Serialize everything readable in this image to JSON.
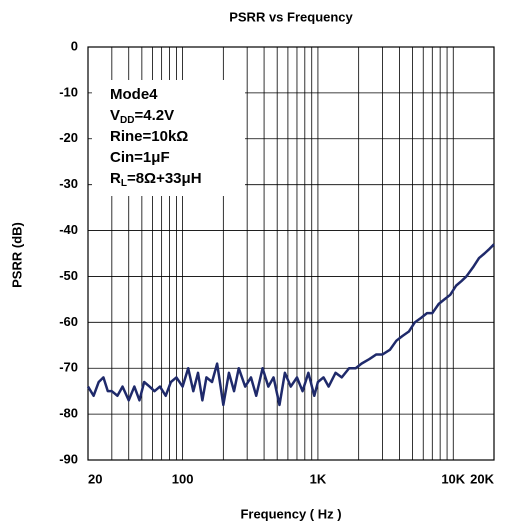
{
  "chart_data": {
    "type": "line",
    "title": "PSRR vs Frequency",
    "xlabel": "Frequency ( Hz )",
    "ylabel": "PSRR (dB)",
    "xscale": "log",
    "xlim": [
      20,
      20000
    ],
    "ylim": [
      -90,
      0
    ],
    "xticks": [
      20,
      100,
      {
        "value": 1000,
        "label": "1K"
      },
      {
        "value": 10000,
        "label": "10K"
      },
      {
        "value": 20000,
        "label": "20K"
      }
    ],
    "xgrid": [
      30,
      40,
      50,
      60,
      70,
      80,
      90,
      200,
      300,
      400,
      500,
      600,
      700,
      800,
      900,
      2000,
      3000,
      4000,
      5000,
      6000,
      7000,
      8000,
      9000
    ],
    "yticks": [
      0,
      -10,
      -20,
      -30,
      -40,
      -50,
      -60,
      -70,
      -80,
      -90
    ],
    "grid": true,
    "annotation": [
      [
        {
          "t": "Mode4"
        }
      ],
      [
        {
          "t": "V"
        },
        {
          "t": "DD",
          "sub": true
        },
        {
          "t": "=4.2V"
        }
      ],
      [
        {
          "t": "Rine=10kΩ"
        }
      ],
      [
        {
          "t": "Cin=1μF"
        }
      ],
      [
        {
          "t": "R"
        },
        {
          "t": "L",
          "sub": true
        },
        {
          "t": "=8Ω+33μH"
        }
      ]
    ],
    "series": [
      {
        "color": "#1f2a6b",
        "x": [
          20,
          22,
          24,
          26,
          28,
          30,
          33,
          36,
          40,
          44,
          48,
          52,
          57,
          62,
          68,
          75,
          82,
          90,
          100,
          110,
          120,
          130,
          140,
          150,
          165,
          180,
          200,
          220,
          240,
          260,
          290,
          320,
          350,
          390,
          430,
          470,
          520,
          570,
          630,
          700,
          770,
          850,
          940,
          1000,
          1100,
          1200,
          1350,
          1500,
          1700,
          1900,
          2100,
          2400,
          2700,
          3000,
          3400,
          3800,
          4200,
          4700,
          5200,
          5800,
          6400,
          7000,
          7800,
          8600,
          9500,
          10500,
          11500,
          12500,
          14000,
          15500,
          17000,
          18500,
          20000
        ],
        "values": [
          -74,
          -76,
          -73,
          -72,
          -75,
          -75,
          -76,
          -74,
          -77,
          -74,
          -77,
          -73,
          -74,
          -75,
          -74,
          -76,
          -73,
          -72,
          -74,
          -70,
          -75,
          -71,
          -77,
          -72,
          -73,
          -69,
          -78,
          -71,
          -75,
          -70,
          -74,
          -72,
          -76,
          -70,
          -74,
          -72,
          -78,
          -71,
          -74,
          -72,
          -75,
          -71,
          -76,
          -73,
          -72,
          -74,
          -71,
          -72,
          -70,
          -70,
          -69,
          -68,
          -67,
          -67,
          -66,
          -64,
          -63,
          -62,
          -60,
          -59,
          -58,
          -58,
          -56,
          -55,
          -54,
          -52,
          -51,
          -50,
          -48,
          -46,
          -45,
          -44,
          -43
        ]
      }
    ]
  }
}
